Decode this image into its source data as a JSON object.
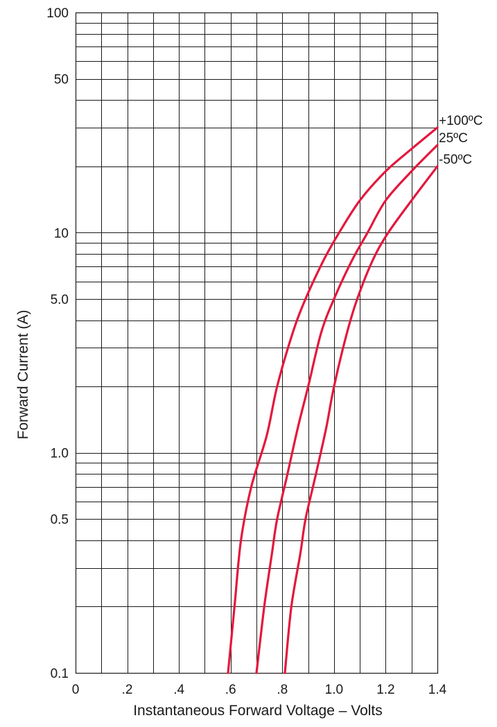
{
  "chart_data": {
    "type": "line",
    "title": "",
    "xlabel": "Instantaneous Forward Voltage – Volts",
    "ylabel": "Forward Current (A)",
    "xlim": [
      0,
      1.4
    ],
    "ylim": [
      0.1,
      100
    ],
    "yscale": "log",
    "grid": true,
    "x_ticks": [
      {
        "value": 0,
        "label": "0"
      },
      {
        "value": 0.2,
        "label": ".2"
      },
      {
        "value": 0.4,
        "label": ".4"
      },
      {
        "value": 0.6,
        "label": ".6"
      },
      {
        "value": 0.8,
        "label": ".8"
      },
      {
        "value": 1.0,
        "label": "1.0"
      },
      {
        "value": 1.2,
        "label": "1.2"
      },
      {
        "value": 1.4,
        "label": "1.4"
      }
    ],
    "x_minor_grid": [
      0.1,
      0.3,
      0.5,
      0.7,
      0.9,
      1.1,
      1.3
    ],
    "y_ticks": [
      {
        "value": 0.1,
        "label": "0.1"
      },
      {
        "value": 0.5,
        "label": "0.5"
      },
      {
        "value": 1,
        "label": "1.0"
      },
      {
        "value": 5,
        "label": "5.0"
      },
      {
        "value": 10,
        "label": "10"
      },
      {
        "value": 50,
        "label": "50"
      },
      {
        "value": 100,
        "label": "100"
      }
    ],
    "y_grid": [
      0.2,
      0.3,
      0.4,
      0.5,
      0.6,
      0.7,
      0.8,
      0.9,
      1,
      2,
      3,
      4,
      5,
      6,
      7,
      8,
      9,
      10,
      20,
      30,
      40,
      50,
      60,
      70,
      80,
      90
    ],
    "series": [
      {
        "name": "+100ºC",
        "color": "#e3183c",
        "points": [
          [
            0.59,
            0.1
          ],
          [
            0.615,
            0.2
          ],
          [
            0.64,
            0.4
          ],
          [
            0.68,
            0.7
          ],
          [
            0.74,
            1.2
          ],
          [
            0.78,
            2
          ],
          [
            0.84,
            3.5
          ],
          [
            0.89,
            5
          ],
          [
            0.96,
            7.5
          ],
          [
            1.02,
            10
          ],
          [
            1.1,
            14
          ],
          [
            1.2,
            19
          ],
          [
            1.3,
            24
          ],
          [
            1.4,
            30
          ]
        ]
      },
      {
        "name": "25ºC",
        "color": "#e3183c",
        "points": [
          [
            0.7,
            0.1
          ],
          [
            0.73,
            0.2
          ],
          [
            0.76,
            0.35
          ],
          [
            0.78,
            0.5
          ],
          [
            0.82,
            0.8
          ],
          [
            0.86,
            1.3
          ],
          [
            0.9,
            2
          ],
          [
            0.95,
            3.5
          ],
          [
            1.0,
            5
          ],
          [
            1.07,
            7.5
          ],
          [
            1.13,
            10
          ],
          [
            1.2,
            14
          ],
          [
            1.3,
            19
          ],
          [
            1.4,
            25
          ]
        ]
      },
      {
        "name": "-50ºC",
        "color": "#e3183c",
        "points": [
          [
            0.81,
            0.1
          ],
          [
            0.835,
            0.2
          ],
          [
            0.87,
            0.35
          ],
          [
            0.89,
            0.5
          ],
          [
            0.93,
            0.8
          ],
          [
            0.97,
            1.3
          ],
          [
            1.0,
            2
          ],
          [
            1.05,
            3.5
          ],
          [
            1.09,
            5
          ],
          [
            1.15,
            7.5
          ],
          [
            1.21,
            10
          ],
          [
            1.3,
            14
          ],
          [
            1.4,
            20
          ]
        ]
      }
    ]
  }
}
